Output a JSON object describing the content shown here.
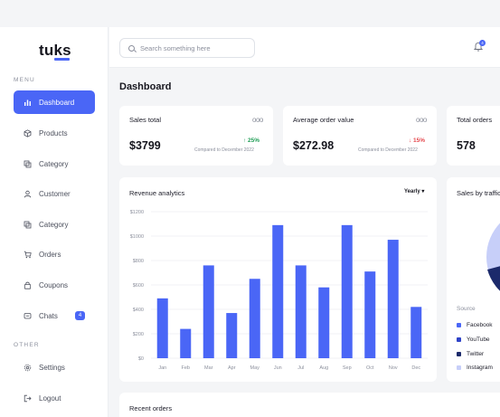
{
  "brand": {
    "name": "tuks"
  },
  "sidebar": {
    "menu_label": "MENU",
    "other_label": "OTHER",
    "items": [
      {
        "label": "Dashboard",
        "icon": "bar-chart-icon",
        "active": true
      },
      {
        "label": "Products",
        "icon": "box-icon"
      },
      {
        "label": "Category",
        "icon": "category-icon"
      },
      {
        "label": "Customer",
        "icon": "user-icon"
      },
      {
        "label": "Category",
        "icon": "category-icon"
      },
      {
        "label": "Orders",
        "icon": "cart-icon"
      },
      {
        "label": "Coupons",
        "icon": "coupon-icon"
      },
      {
        "label": "Chats",
        "icon": "chat-icon",
        "badge": "4"
      }
    ],
    "other_items": [
      {
        "label": "Settings",
        "icon": "gear-icon"
      },
      {
        "label": "Logout",
        "icon": "logout-icon"
      }
    ]
  },
  "header": {
    "search_placeholder": "Search something here",
    "notification_count": "4"
  },
  "page": {
    "title": "Dashboard"
  },
  "stats": [
    {
      "title": "Sales total",
      "value": "$3799",
      "delta": "↑ 25%",
      "trend": "up",
      "compare": "Compared to December 2022"
    },
    {
      "title": "Average order value",
      "value": "$272.98",
      "delta": "↓ 15%",
      "trend": "down",
      "compare": "Compared to December 2022"
    },
    {
      "title": "Total orders",
      "value": "578"
    }
  ],
  "revenue": {
    "title": "Revenue analytics",
    "period": "Yearly ▾"
  },
  "traffic": {
    "title": "Sales by traffic",
    "legend_title": "Source",
    "legend": [
      {
        "name": "Facebook",
        "color": "#4a66f6"
      },
      {
        "name": "YouTube",
        "color": "#2f43c8"
      },
      {
        "name": "Twitter",
        "color": "#1c2a6b"
      },
      {
        "name": "Instagram",
        "color": "#c7cff9"
      }
    ]
  },
  "recent_orders": {
    "title": "Recent orders"
  },
  "chart_data": {
    "type": "bar",
    "title": "Revenue analytics",
    "categories": [
      "Jan",
      "Feb",
      "Mar",
      "Apr",
      "May",
      "Jun",
      "Jul",
      "Aug",
      "Sep",
      "Oct",
      "Nov",
      "Dec"
    ],
    "values": [
      490,
      240,
      760,
      370,
      650,
      1090,
      760,
      580,
      1090,
      710,
      970,
      420
    ],
    "ylim": [
      0,
      1200
    ],
    "yticks": [
      "$0",
      "$200",
      "$400",
      "$600",
      "$800",
      "$1000",
      "$1200"
    ],
    "color": "#4a66f6",
    "grid": true
  }
}
